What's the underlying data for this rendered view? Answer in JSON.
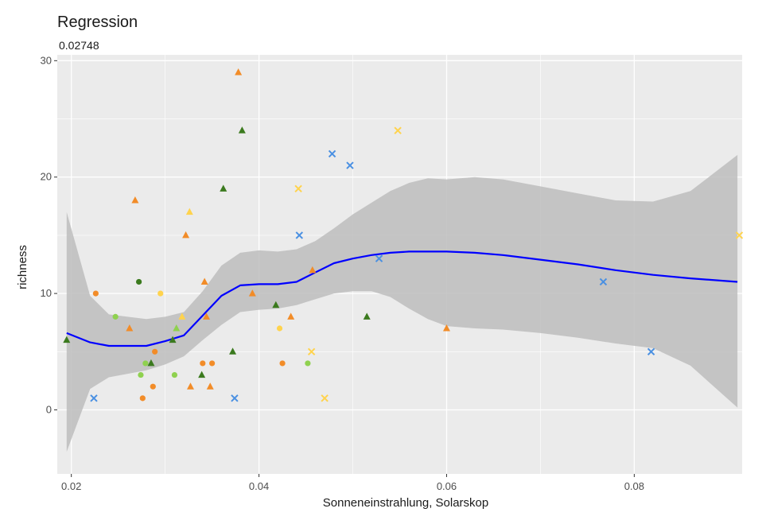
{
  "chart_data": {
    "type": "scatter",
    "title": "Regression",
    "subtitle": "0.02748",
    "xlabel": "Sonneneinstrahlung, Solarskop",
    "ylabel": "richness",
    "xlim": [
      0.0185,
      0.0915
    ],
    "ylim": [
      -5.5,
      30.5
    ],
    "x_ticks": [
      0.02,
      0.04,
      0.06,
      0.08
    ],
    "x_tick_labels": [
      "0.02",
      "0.04",
      "0.06",
      "0.08"
    ],
    "y_ticks": [
      0,
      10,
      20,
      30
    ],
    "y_tick_labels": [
      "0",
      "10",
      "20",
      "30"
    ],
    "grid": true,
    "legend": "none",
    "colors": {
      "panel_background": "#ebebeb",
      "grid": "#ffffff",
      "smooth_line": "#0000ff",
      "confidence_band": "#bdbdbd",
      "dark_green": "#3b7a1e",
      "light_green": "#8fd14f",
      "orange": "#f28c28",
      "yellow": "#ffd34d",
      "blue": "#4a90e2"
    },
    "points": [
      {
        "x": 0.0195,
        "y": 6,
        "color": "dark_green",
        "shape": "triangle"
      },
      {
        "x": 0.0224,
        "y": 1,
        "color": "blue",
        "shape": "cross"
      },
      {
        "x": 0.0226,
        "y": 10,
        "color": "orange",
        "shape": "circle"
      },
      {
        "x": 0.0247,
        "y": 8,
        "color": "light_green",
        "shape": "circle"
      },
      {
        "x": 0.0262,
        "y": 7,
        "color": "orange",
        "shape": "triangle"
      },
      {
        "x": 0.0268,
        "y": 18,
        "color": "orange",
        "shape": "triangle"
      },
      {
        "x": 0.0272,
        "y": 11,
        "color": "dark_green",
        "shape": "circle"
      },
      {
        "x": 0.0274,
        "y": 3,
        "color": "light_green",
        "shape": "circle"
      },
      {
        "x": 0.0276,
        "y": 1,
        "color": "orange",
        "shape": "circle"
      },
      {
        "x": 0.0279,
        "y": 4,
        "color": "light_green",
        "shape": "circle"
      },
      {
        "x": 0.0285,
        "y": 4,
        "color": "dark_green",
        "shape": "triangle"
      },
      {
        "x": 0.0287,
        "y": 2,
        "color": "orange",
        "shape": "circle"
      },
      {
        "x": 0.0289,
        "y": 5,
        "color": "orange",
        "shape": "circle"
      },
      {
        "x": 0.0295,
        "y": 10,
        "color": "yellow",
        "shape": "circle"
      },
      {
        "x": 0.0308,
        "y": 6,
        "color": "dark_green",
        "shape": "triangle"
      },
      {
        "x": 0.031,
        "y": 3,
        "color": "light_green",
        "shape": "circle"
      },
      {
        "x": 0.0312,
        "y": 7,
        "color": "light_green",
        "shape": "triangle"
      },
      {
        "x": 0.0318,
        "y": 8,
        "color": "yellow",
        "shape": "triangle"
      },
      {
        "x": 0.0322,
        "y": 15,
        "color": "orange",
        "shape": "triangle"
      },
      {
        "x": 0.0326,
        "y": 17,
        "color": "yellow",
        "shape": "triangle"
      },
      {
        "x": 0.0327,
        "y": 2,
        "color": "orange",
        "shape": "triangle"
      },
      {
        "x": 0.0339,
        "y": 3,
        "color": "dark_green",
        "shape": "triangle"
      },
      {
        "x": 0.034,
        "y": 4,
        "color": "orange",
        "shape": "circle"
      },
      {
        "x": 0.0342,
        "y": 11,
        "color": "orange",
        "shape": "triangle"
      },
      {
        "x": 0.0344,
        "y": 8,
        "color": "orange",
        "shape": "triangle"
      },
      {
        "x": 0.0348,
        "y": 2,
        "color": "orange",
        "shape": "triangle"
      },
      {
        "x": 0.035,
        "y": 4,
        "color": "orange",
        "shape": "circle"
      },
      {
        "x": 0.0362,
        "y": 19,
        "color": "dark_green",
        "shape": "triangle"
      },
      {
        "x": 0.0372,
        "y": 5,
        "color": "dark_green",
        "shape": "triangle"
      },
      {
        "x": 0.0374,
        "y": 1,
        "color": "blue",
        "shape": "cross"
      },
      {
        "x": 0.0378,
        "y": 29,
        "color": "orange",
        "shape": "triangle"
      },
      {
        "x": 0.0382,
        "y": 24,
        "color": "dark_green",
        "shape": "triangle"
      },
      {
        "x": 0.0393,
        "y": 10,
        "color": "orange",
        "shape": "triangle"
      },
      {
        "x": 0.0418,
        "y": 9,
        "color": "dark_green",
        "shape": "triangle"
      },
      {
        "x": 0.0422,
        "y": 7,
        "color": "yellow",
        "shape": "circle"
      },
      {
        "x": 0.0425,
        "y": 4,
        "color": "orange",
        "shape": "circle"
      },
      {
        "x": 0.0434,
        "y": 8,
        "color": "orange",
        "shape": "triangle"
      },
      {
        "x": 0.0442,
        "y": 19,
        "color": "yellow",
        "shape": "cross"
      },
      {
        "x": 0.0443,
        "y": 15,
        "color": "blue",
        "shape": "cross"
      },
      {
        "x": 0.0452,
        "y": 4,
        "color": "light_green",
        "shape": "circle"
      },
      {
        "x": 0.0456,
        "y": 5,
        "color": "yellow",
        "shape": "cross"
      },
      {
        "x": 0.0457,
        "y": 12,
        "color": "orange",
        "shape": "triangle"
      },
      {
        "x": 0.047,
        "y": 1,
        "color": "yellow",
        "shape": "cross"
      },
      {
        "x": 0.0478,
        "y": 22,
        "color": "blue",
        "shape": "cross"
      },
      {
        "x": 0.0497,
        "y": 21,
        "color": "blue",
        "shape": "cross"
      },
      {
        "x": 0.0515,
        "y": 8,
        "color": "dark_green",
        "shape": "triangle"
      },
      {
        "x": 0.0528,
        "y": 13,
        "color": "blue",
        "shape": "cross"
      },
      {
        "x": 0.0548,
        "y": 24,
        "color": "yellow",
        "shape": "cross"
      },
      {
        "x": 0.06,
        "y": 7,
        "color": "orange",
        "shape": "triangle"
      },
      {
        "x": 0.0767,
        "y": 11,
        "color": "blue",
        "shape": "cross"
      },
      {
        "x": 0.0818,
        "y": 5,
        "color": "blue",
        "shape": "cross"
      },
      {
        "x": 0.0912,
        "y": 15,
        "color": "yellow",
        "shape": "cross"
      }
    ],
    "smooth": {
      "x": [
        0.0195,
        0.022,
        0.024,
        0.026,
        0.028,
        0.03,
        0.032,
        0.034,
        0.036,
        0.038,
        0.04,
        0.042,
        0.044,
        0.046,
        0.048,
        0.05,
        0.052,
        0.054,
        0.056,
        0.058,
        0.06,
        0.063,
        0.066,
        0.07,
        0.074,
        0.078,
        0.082,
        0.086,
        0.091
      ],
      "y": [
        6.6,
        5.8,
        5.5,
        5.5,
        5.5,
        5.9,
        6.4,
        8.1,
        9.8,
        10.7,
        10.8,
        10.8,
        11.0,
        11.8,
        12.6,
        13.0,
        13.3,
        13.5,
        13.6,
        13.6,
        13.6,
        13.5,
        13.3,
        12.9,
        12.5,
        12.0,
        11.6,
        11.3,
        11.0
      ],
      "ymin": [
        -3.6,
        1.8,
        2.8,
        3.1,
        3.4,
        3.9,
        4.6,
        6.0,
        7.3,
        8.4,
        8.6,
        8.7,
        9.0,
        9.5,
        10.0,
        10.2,
        10.2,
        9.7,
        8.7,
        7.8,
        7.2,
        7.0,
        6.9,
        6.6,
        6.2,
        5.7,
        5.3,
        3.8,
        0.2
      ],
      "ymax": [
        17.0,
        9.8,
        8.2,
        8.0,
        7.8,
        8.0,
        8.4,
        10.2,
        12.4,
        13.5,
        13.7,
        13.6,
        13.8,
        14.5,
        15.6,
        16.8,
        17.8,
        18.8,
        19.5,
        19.9,
        19.8,
        20.0,
        19.8,
        19.2,
        18.6,
        18.0,
        17.9,
        18.8,
        21.9
      ]
    }
  }
}
